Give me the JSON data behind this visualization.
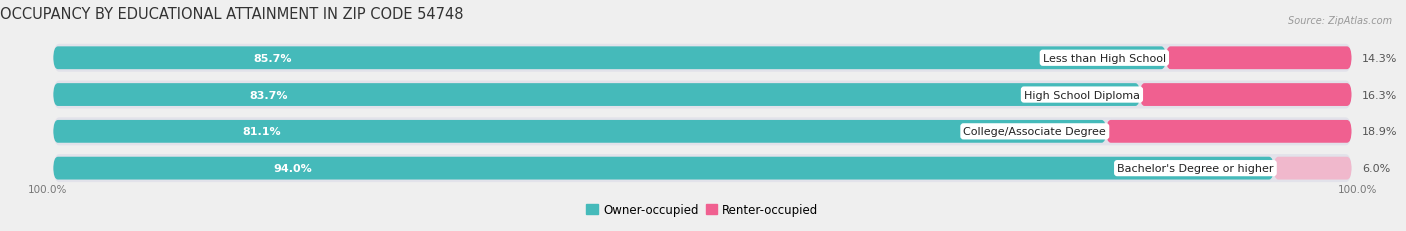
{
  "title": "OCCUPANCY BY EDUCATIONAL ATTAINMENT IN ZIP CODE 54748",
  "source": "Source: ZipAtlas.com",
  "categories": [
    "Less than High School",
    "High School Diploma",
    "College/Associate Degree",
    "Bachelor's Degree or higher"
  ],
  "owner_pct": [
    85.7,
    83.7,
    81.1,
    94.0
  ],
  "renter_pct": [
    14.3,
    16.3,
    18.9,
    6.0
  ],
  "owner_color": "#45BABA",
  "renter_color": "#F06090",
  "renter_light_color": "#F0B8CC",
  "background_color": "#EFEFEF",
  "bar_bg_color": "#E2E2EA",
  "bar_height": 0.62,
  "title_fontsize": 10.5,
  "label_fontsize": 8.0,
  "pct_fontsize": 8.0,
  "axis_label_fontsize": 7.5,
  "legend_fontsize": 8.5,
  "x_left_label": "100.0%",
  "x_right_label": "100.0%"
}
